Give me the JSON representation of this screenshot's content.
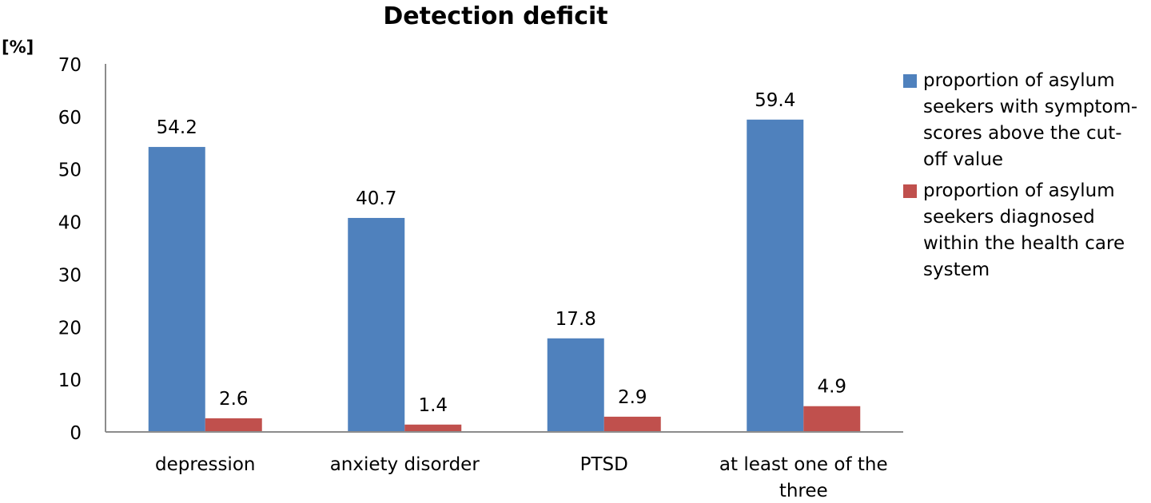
{
  "chart_data": {
    "type": "bar",
    "title": "Detection deficit",
    "ylabel": "[%]",
    "xlabel": "",
    "ylim": [
      0,
      70
    ],
    "yticks": [
      0,
      10,
      20,
      30,
      40,
      50,
      60,
      70
    ],
    "grid": false,
    "legend_position": "right",
    "categories": [
      "depression",
      "anxiety disorder",
      "PTSD",
      "at least one of the three"
    ],
    "category_lines": [
      [
        "depression"
      ],
      [
        "anxiety disorder"
      ],
      [
        "PTSD"
      ],
      [
        "at least one of the",
        "three"
      ]
    ],
    "series": [
      {
        "name": "proportion of asylum seekers with symptom-scores above the cut-off value",
        "legend_lines": [
          "proportion of asylum",
          "seekers with symptom-",
          "scores above the cut-",
          "off value"
        ],
        "color": "#4f81bd",
        "values": [
          54.2,
          40.7,
          17.8,
          59.4
        ]
      },
      {
        "name": "proportion of asylum seekers diagnosed within the health care system",
        "legend_lines": [
          "proportion of asylum",
          "seekers diagnosed",
          "within the health care",
          "system"
        ],
        "color": "#c0504d",
        "values": [
          2.6,
          1.4,
          2.9,
          4.9
        ]
      }
    ]
  }
}
